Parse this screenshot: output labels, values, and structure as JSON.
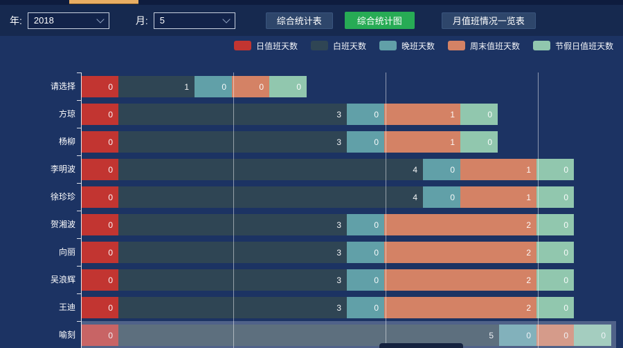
{
  "header": {
    "year_label": "年:",
    "year_value": "2018",
    "month_label": "月:",
    "month_value": "5",
    "buttons": [
      {
        "label": "综合统计表",
        "variant": "default",
        "color": "#2e466b"
      },
      {
        "label": "综合统计图",
        "variant": "active",
        "color": "#27ab55"
      },
      {
        "label": "月值班情况一览表",
        "variant": "default",
        "color": "#2e466b"
      }
    ]
  },
  "legend": {
    "position": "top"
  },
  "chart_data": {
    "type": "bar",
    "orientation": "horizontal",
    "stacked": true,
    "title": "",
    "categories": [
      "请选择",
      "方琼",
      "杨柳",
      "李明波",
      "徐珍珍",
      "贺湘波",
      "向丽",
      "吴浪辉",
      "王迪",
      "喻刻"
    ],
    "series": [
      {
        "name": "日值班天数",
        "color": "#c23531",
        "values": [
          0,
          0,
          0,
          0,
          0,
          0,
          0,
          0,
          0,
          0
        ]
      },
      {
        "name": "白班天数",
        "color": "#2f4554",
        "values": [
          1,
          3,
          3,
          4,
          4,
          3,
          3,
          3,
          3,
          5
        ]
      },
      {
        "name": "晚班天数",
        "color": "#61a0a8",
        "values": [
          0,
          0,
          0,
          0,
          0,
          0,
          0,
          0,
          0,
          0
        ]
      },
      {
        "name": "周末值班天数",
        "color": "#d48265",
        "values": [
          0,
          1,
          1,
          1,
          1,
          2,
          2,
          2,
          2,
          0
        ]
      },
      {
        "name": "节假日值班天数",
        "color": "#91c7ae",
        "values": [
          0,
          0,
          0,
          0,
          0,
          0,
          0,
          0,
          0,
          0
        ]
      }
    ],
    "xlim": [
      0,
      7
    ],
    "grid": true,
    "legend_position": "top",
    "bar_labels": "value-inside-right",
    "highlighted_category": "喻刻"
  }
}
